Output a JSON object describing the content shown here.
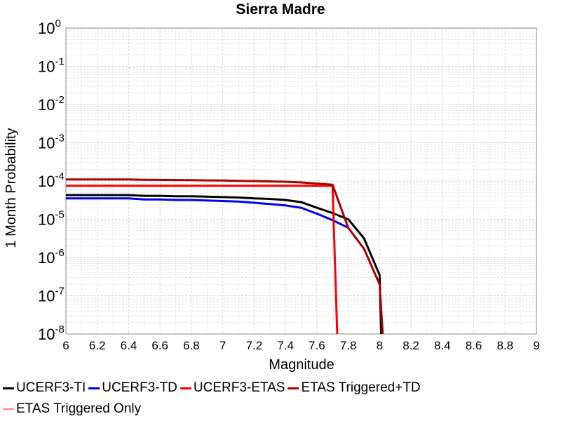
{
  "chart_data": {
    "type": "line",
    "title": "Sierra Madre",
    "xlabel": "Magnitude",
    "ylabel": "1 Month Probability",
    "xlim": [
      6,
      9
    ],
    "ylim": [
      1e-08,
      1
    ],
    "y_scale": "log",
    "grid": true,
    "legend_position": "bottom",
    "x_ticks": [
      "6",
      "6.2",
      "6.4",
      "6.6",
      "6.8",
      "7",
      "7.2",
      "7.4",
      "7.6",
      "7.8",
      "8",
      "8.2",
      "8.4",
      "8.6",
      "8.8",
      "9"
    ],
    "y_tick_exponents": [
      "0",
      "-1",
      "-2",
      "-3",
      "-4",
      "-5",
      "-6",
      "-7",
      "-8"
    ],
    "y_tick_base": "10",
    "series": [
      {
        "name": "UCERF3-TI",
        "color": "#000000",
        "x": [
          6.0,
          6.1,
          6.2,
          6.3,
          6.4,
          6.5,
          6.6,
          6.7,
          6.8,
          6.9,
          7.0,
          7.1,
          7.2,
          7.3,
          7.4,
          7.5,
          7.6,
          7.7,
          7.8,
          7.9,
          8.0,
          8.01
        ],
        "y": [
          4.3e-05,
          4.3e-05,
          4.3e-05,
          4.3e-05,
          4.3e-05,
          4.1e-05,
          4.1e-05,
          4e-05,
          4e-05,
          3.9e-05,
          3.8e-05,
          3.7e-05,
          3.5e-05,
          3.4e-05,
          3.2e-05,
          2.8e-05,
          2e-05,
          1.45e-05,
          1e-05,
          3.2e-06,
          3.5e-07,
          1e-08
        ]
      },
      {
        "name": "UCERF3-TD",
        "color": "#0000ee",
        "x": [
          6.0,
          6.1,
          6.2,
          6.3,
          6.4,
          6.5,
          6.6,
          6.7,
          6.8,
          6.9,
          7.0,
          7.1,
          7.2,
          7.3,
          7.4,
          7.5,
          7.6,
          7.7,
          7.8
        ],
        "y": [
          3.5e-05,
          3.5e-05,
          3.5e-05,
          3.5e-05,
          3.5e-05,
          3.3e-05,
          3.3e-05,
          3.2e-05,
          3.2e-05,
          3.1e-05,
          3e-05,
          2.9e-05,
          2.7e-05,
          2.5e-05,
          2.3e-05,
          2e-05,
          1.4e-05,
          9.5e-06,
          6e-06
        ]
      },
      {
        "name": "UCERF3-ETAS",
        "color": "#ff0000",
        "x": [
          6.0,
          6.5,
          7.0,
          7.5,
          7.7,
          7.73
        ],
        "y": [
          7.5e-05,
          7.5e-05,
          7.5e-05,
          7.5e-05,
          7.5e-05,
          1e-08
        ]
      },
      {
        "name": "ETAS Triggered+TD",
        "color": "#aa0000",
        "x": [
          6.0,
          6.1,
          6.2,
          6.3,
          6.4,
          6.5,
          6.6,
          6.7,
          6.8,
          6.9,
          7.0,
          7.1,
          7.2,
          7.3,
          7.4,
          7.5,
          7.6,
          7.7,
          7.8,
          7.9,
          8.0,
          8.02
        ],
        "y": [
          0.00011,
          0.00011,
          0.00011,
          0.00011,
          0.00011,
          0.000108,
          0.000107,
          0.000106,
          0.000105,
          0.000104,
          0.000103,
          0.000101,
          0.0001,
          9.8e-05,
          9.6e-05,
          9.2e-05,
          8.6e-05,
          8e-05,
          6e-06,
          1.7e-06,
          2e-07,
          1e-08
        ]
      },
      {
        "name": "ETAS Triggered Only",
        "color": "#ff8080",
        "x": [],
        "y": []
      }
    ]
  }
}
